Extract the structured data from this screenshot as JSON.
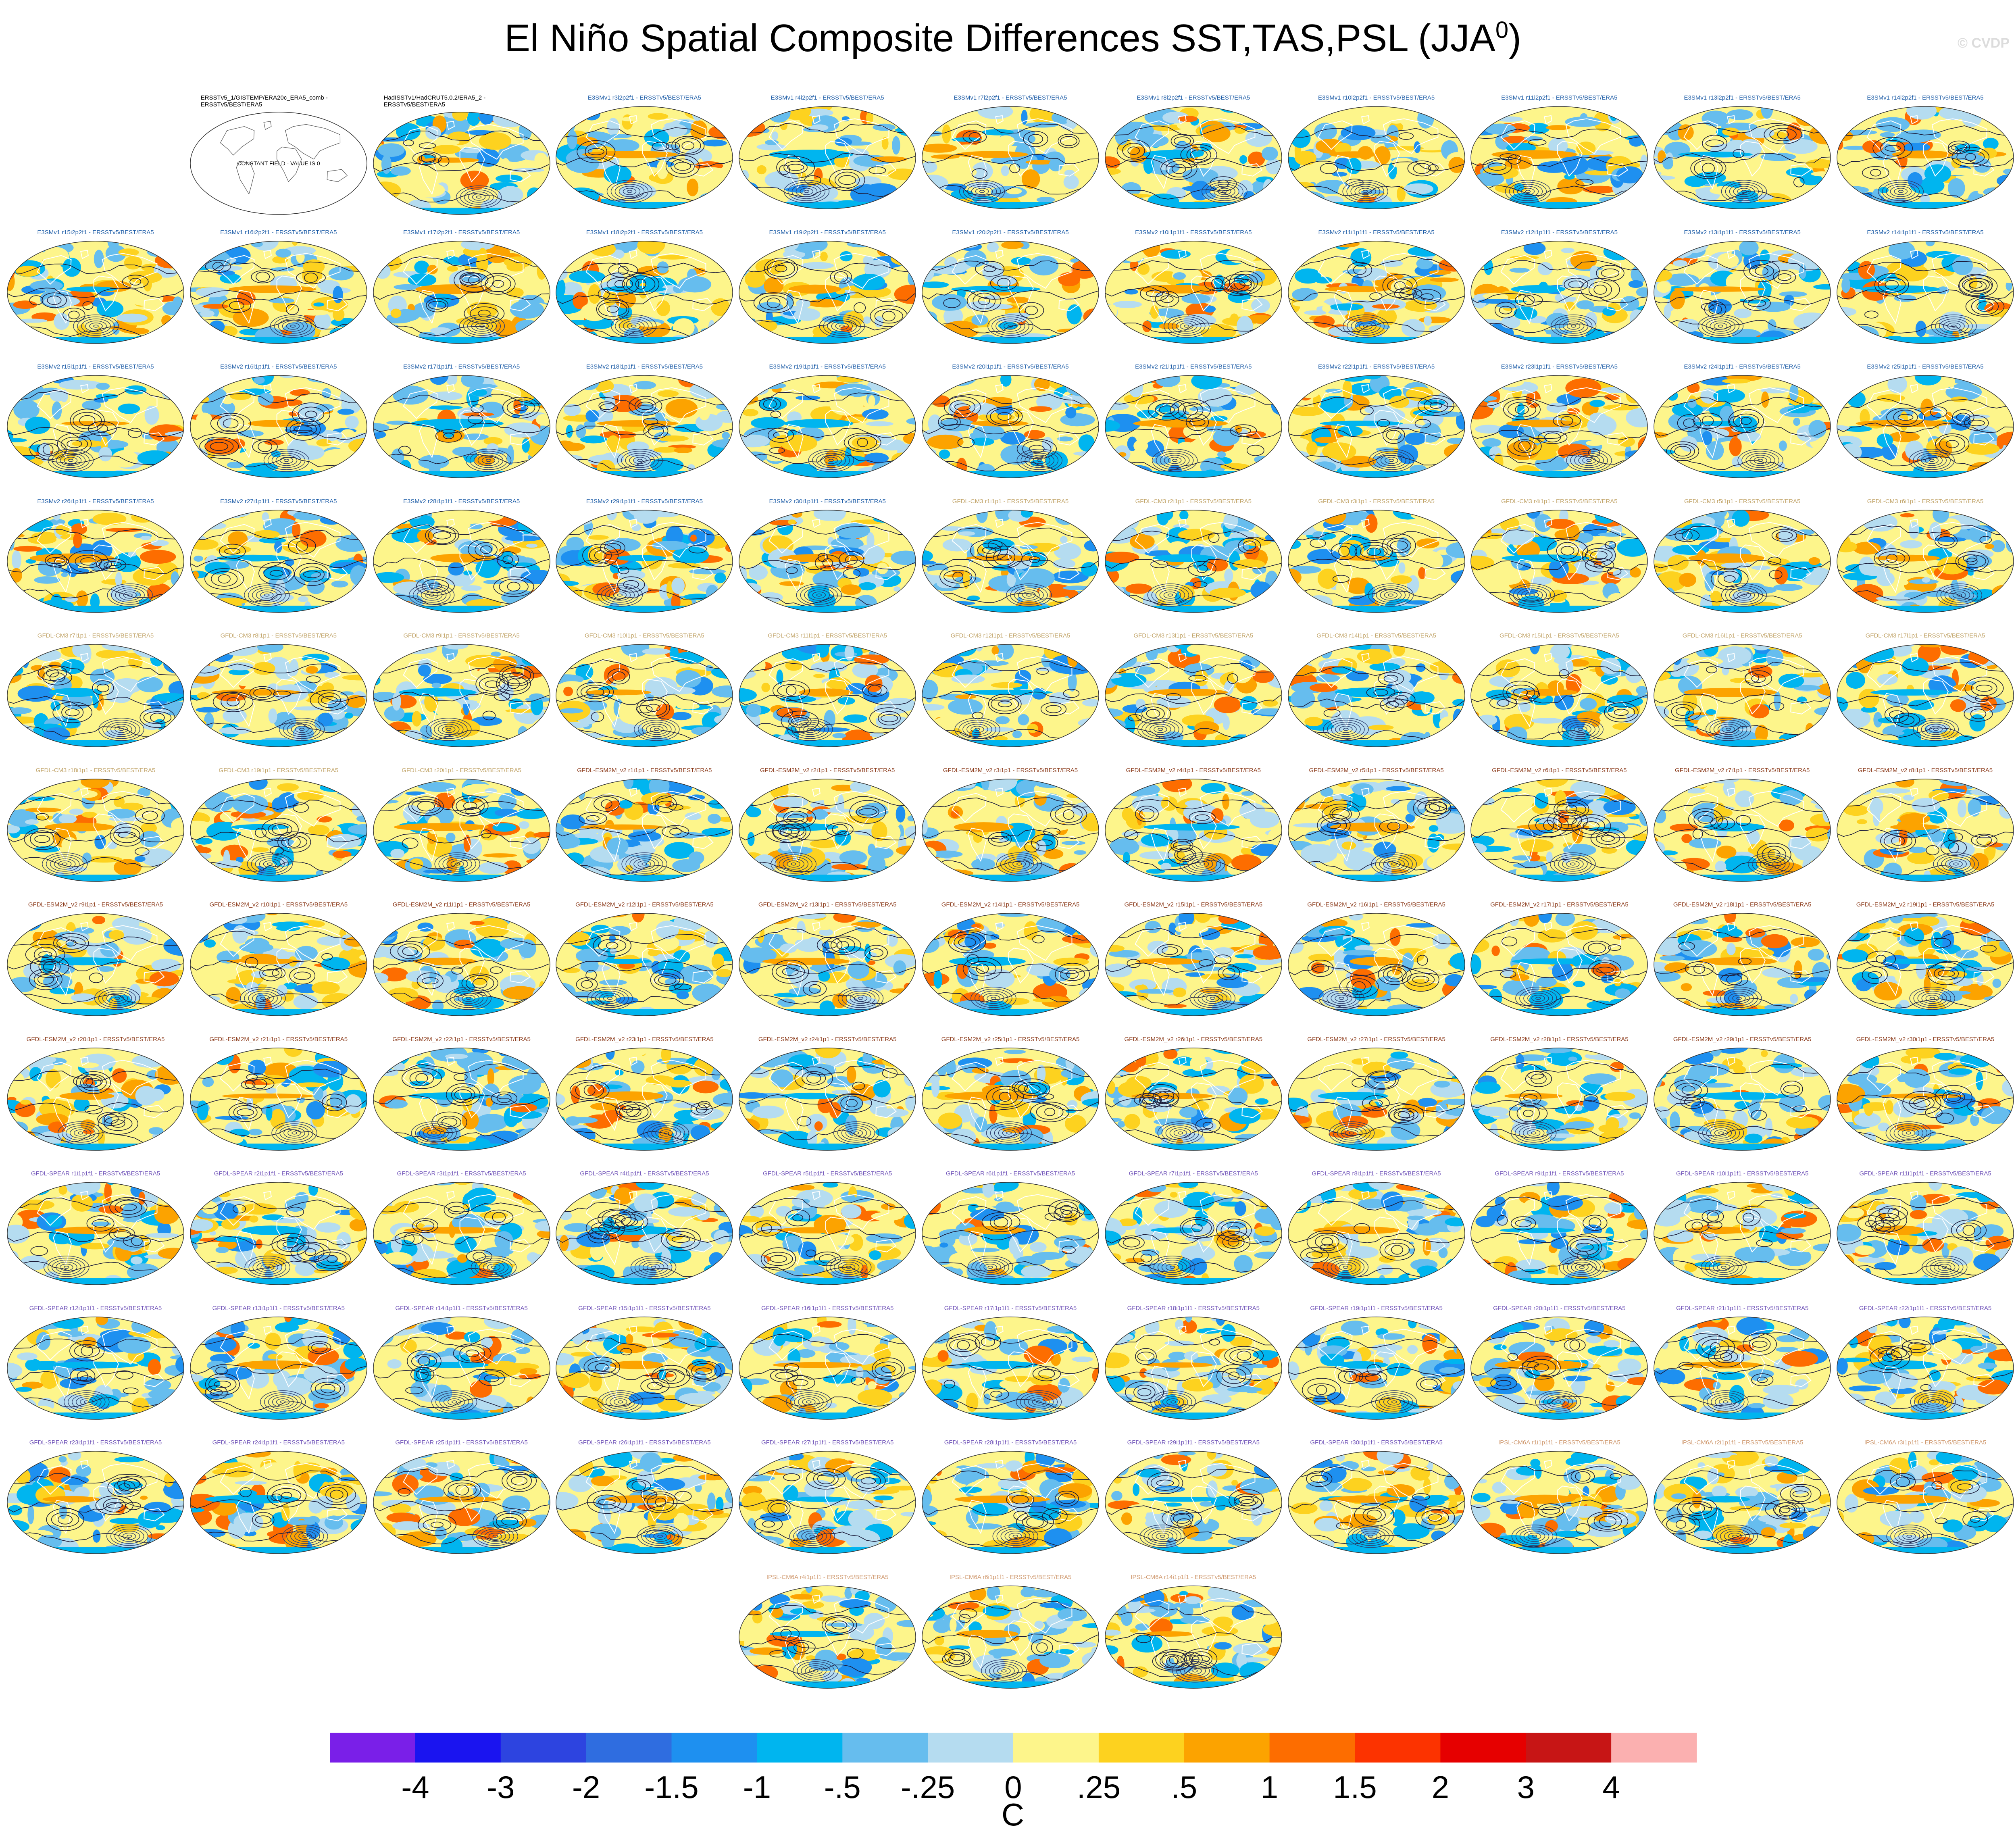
{
  "title": "El Niño Spatial Composite Differences SST,TAS,PSL (JJA",
  "title_superscript": "0",
  "title_suffix": ")",
  "watermark": "© CVDP",
  "colors": {
    "E3SM": "#1f5ea8",
    "GFDL-CM3": "#c2a56a",
    "GFDL-ESM2M": "#8b3a1a",
    "GFDL-SPEAR": "#6f52b8",
    "IPSL-CM6A": "#d09a70",
    "obs": "#000000"
  },
  "panels": [
    {
      "label": "ERSSTv5_1/GISTEMP/ERA20c_ERA5_comb - ERSSTv5/BEST/ERA5",
      "group": "obs",
      "constant": "CONSTANT FIELD - VALUE IS 0"
    },
    {
      "label": "HadISSTv1/HadCRUT5.0.2/ERA5_2 - ERSSTv5/BEST/ERA5",
      "group": "obs"
    },
    {
      "label": "E3SMv1 r3i2p2f1 - ERSSTv5/BEST/ERA5",
      "group": "E3SM"
    },
    {
      "label": "E3SMv1 r4i2p2f1 - ERSSTv5/BEST/ERA5",
      "group": "E3SM"
    },
    {
      "label": "E3SMv1 r7i2p2f1 - ERSSTv5/BEST/ERA5",
      "group": "E3SM"
    },
    {
      "label": "E3SMv1 r8i2p2f1 - ERSSTv5/BEST/ERA5",
      "group": "E3SM"
    },
    {
      "label": "E3SMv1 r10i2p2f1 - ERSSTv5/BEST/ERA5",
      "group": "E3SM"
    },
    {
      "label": "E3SMv1 r11i2p2f1 - ERSSTv5/BEST/ERA5",
      "group": "E3SM"
    },
    {
      "label": "E3SMv1 r13i2p2f1 - ERSSTv5/BEST/ERA5",
      "group": "E3SM"
    },
    {
      "label": "E3SMv1 r14i2p2f1 - ERSSTv5/BEST/ERA5",
      "group": "E3SM"
    },
    {
      "label": "E3SMv1 r15i2p2f1 - ERSSTv5/BEST/ERA5",
      "group": "E3SM"
    },
    {
      "label": "E3SMv1 r16i2p2f1 - ERSSTv5/BEST/ERA5",
      "group": "E3SM"
    },
    {
      "label": "E3SMv1 r17i2p2f1 - ERSSTv5/BEST/ERA5",
      "group": "E3SM"
    },
    {
      "label": "E3SMv1 r18i2p2f1 - ERSSTv5/BEST/ERA5",
      "group": "E3SM"
    },
    {
      "label": "E3SMv1 r19i2p2f1 - ERSSTv5/BEST/ERA5",
      "group": "E3SM"
    },
    {
      "label": "E3SMv1 r20i2p2f1 - ERSSTv5/BEST/ERA5",
      "group": "E3SM"
    },
    {
      "label": "E3SMv2 r10i1p1f1 - ERSSTv5/BEST/ERA5",
      "group": "E3SM"
    },
    {
      "label": "E3SMv2 r11i1p1f1 - ERSSTv5/BEST/ERA5",
      "group": "E3SM"
    },
    {
      "label": "E3SMv2 r12i1p1f1 - ERSSTv5/BEST/ERA5",
      "group": "E3SM"
    },
    {
      "label": "E3SMv2 r13i1p1f1 - ERSSTv5/BEST/ERA5",
      "group": "E3SM"
    },
    {
      "label": "E3SMv2 r14i1p1f1 - ERSSTv5/BEST/ERA5",
      "group": "E3SM"
    },
    {
      "label": "E3SMv2 r15i1p1f1 - ERSSTv5/BEST/ERA5",
      "group": "E3SM"
    },
    {
      "label": "E3SMv2 r16i1p1f1 - ERSSTv5/BEST/ERA5",
      "group": "E3SM"
    },
    {
      "label": "E3SMv2 r17i1p1f1 - ERSSTv5/BEST/ERA5",
      "group": "E3SM"
    },
    {
      "label": "E3SMv2 r18i1p1f1 - ERSSTv5/BEST/ERA5",
      "group": "E3SM"
    },
    {
      "label": "E3SMv2 r19i1p1f1 - ERSSTv5/BEST/ERA5",
      "group": "E3SM"
    },
    {
      "label": "E3SMv2 r20i1p1f1 - ERSSTv5/BEST/ERA5",
      "group": "E3SM"
    },
    {
      "label": "E3SMv2 r21i1p1f1 - ERSSTv5/BEST/ERA5",
      "group": "E3SM"
    },
    {
      "label": "E3SMv2 r22i1p1f1 - ERSSTv5/BEST/ERA5",
      "group": "E3SM"
    },
    {
      "label": "E3SMv2 r23i1p1f1 - ERSSTv5/BEST/ERA5",
      "group": "E3SM"
    },
    {
      "label": "E3SMv2 r24i1p1f1 - ERSSTv5/BEST/ERA5",
      "group": "E3SM"
    },
    {
      "label": "E3SMv2 r25i1p1f1 - ERSSTv5/BEST/ERA5",
      "group": "E3SM"
    },
    {
      "label": "E3SMv2 r26i1p1f1 - ERSSTv5/BEST/ERA5",
      "group": "E3SM"
    },
    {
      "label": "E3SMv2 r27i1p1f1 - ERSSTv5/BEST/ERA5",
      "group": "E3SM"
    },
    {
      "label": "E3SMv2 r28i1p1f1 - ERSSTv5/BEST/ERA5",
      "group": "E3SM"
    },
    {
      "label": "E3SMv2 r29i1p1f1 - ERSSTv5/BEST/ERA5",
      "group": "E3SM"
    },
    {
      "label": "E3SMv2 r30i1p1f1 - ERSSTv5/BEST/ERA5",
      "group": "E3SM"
    },
    {
      "label": "GFDL-CM3 r1i1p1 - ERSSTv5/BEST/ERA5",
      "group": "GFDL-CM3"
    },
    {
      "label": "GFDL-CM3 r2i1p1 - ERSSTv5/BEST/ERA5",
      "group": "GFDL-CM3"
    },
    {
      "label": "GFDL-CM3 r3i1p1 - ERSSTv5/BEST/ERA5",
      "group": "GFDL-CM3"
    },
    {
      "label": "GFDL-CM3 r4i1p1 - ERSSTv5/BEST/ERA5",
      "group": "GFDL-CM3"
    },
    {
      "label": "GFDL-CM3 r5i1p1 - ERSSTv5/BEST/ERA5",
      "group": "GFDL-CM3"
    },
    {
      "label": "GFDL-CM3 r6i1p1 - ERSSTv5/BEST/ERA5",
      "group": "GFDL-CM3"
    },
    {
      "label": "GFDL-CM3 r7i1p1 - ERSSTv5/BEST/ERA5",
      "group": "GFDL-CM3"
    },
    {
      "label": "GFDL-CM3 r8i1p1 - ERSSTv5/BEST/ERA5",
      "group": "GFDL-CM3"
    },
    {
      "label": "GFDL-CM3 r9i1p1 - ERSSTv5/BEST/ERA5",
      "group": "GFDL-CM3"
    },
    {
      "label": "GFDL-CM3 r10i1p1 - ERSSTv5/BEST/ERA5",
      "group": "GFDL-CM3"
    },
    {
      "label": "GFDL-CM3 r11i1p1 - ERSSTv5/BEST/ERA5",
      "group": "GFDL-CM3"
    },
    {
      "label": "GFDL-CM3 r12i1p1 - ERSSTv5/BEST/ERA5",
      "group": "GFDL-CM3"
    },
    {
      "label": "GFDL-CM3 r13i1p1 - ERSSTv5/BEST/ERA5",
      "group": "GFDL-CM3"
    },
    {
      "label": "GFDL-CM3 r14i1p1 - ERSSTv5/BEST/ERA5",
      "group": "GFDL-CM3"
    },
    {
      "label": "GFDL-CM3 r15i1p1 - ERSSTv5/BEST/ERA5",
      "group": "GFDL-CM3"
    },
    {
      "label": "GFDL-CM3 r16i1p1 - ERSSTv5/BEST/ERA5",
      "group": "GFDL-CM3"
    },
    {
      "label": "GFDL-CM3 r17i1p1 - ERSSTv5/BEST/ERA5",
      "group": "GFDL-CM3"
    },
    {
      "label": "GFDL-CM3 r18i1p1 - ERSSTv5/BEST/ERA5",
      "group": "GFDL-CM3"
    },
    {
      "label": "GFDL-CM3 r19i1p1 - ERSSTv5/BEST/ERA5",
      "group": "GFDL-CM3"
    },
    {
      "label": "GFDL-CM3 r20i1p1 - ERSSTv5/BEST/ERA5",
      "group": "GFDL-CM3"
    },
    {
      "label": "GFDL-ESM2M_v2 r1i1p1 - ERSSTv5/BEST/ERA5",
      "group": "GFDL-ESM2M"
    },
    {
      "label": "GFDL-ESM2M_v2 r2i1p1 - ERSSTv5/BEST/ERA5",
      "group": "GFDL-ESM2M"
    },
    {
      "label": "GFDL-ESM2M_v2 r3i1p1 - ERSSTv5/BEST/ERA5",
      "group": "GFDL-ESM2M"
    },
    {
      "label": "GFDL-ESM2M_v2 r4i1p1 - ERSSTv5/BEST/ERA5",
      "group": "GFDL-ESM2M"
    },
    {
      "label": "GFDL-ESM2M_v2 r5i1p1 - ERSSTv5/BEST/ERA5",
      "group": "GFDL-ESM2M"
    },
    {
      "label": "GFDL-ESM2M_v2 r6i1p1 - ERSSTv5/BEST/ERA5",
      "group": "GFDL-ESM2M"
    },
    {
      "label": "GFDL-ESM2M_v2 r7i1p1 - ERSSTv5/BEST/ERA5",
      "group": "GFDL-ESM2M"
    },
    {
      "label": "GFDL-ESM2M_v2 r8i1p1 - ERSSTv5/BEST/ERA5",
      "group": "GFDL-ESM2M"
    },
    {
      "label": "GFDL-ESM2M_v2 r9i1p1 - ERSSTv5/BEST/ERA5",
      "group": "GFDL-ESM2M"
    },
    {
      "label": "GFDL-ESM2M_v2 r10i1p1 - ERSSTv5/BEST/ERA5",
      "group": "GFDL-ESM2M"
    },
    {
      "label": "GFDL-ESM2M_v2 r11i1p1 - ERSSTv5/BEST/ERA5",
      "group": "GFDL-ESM2M"
    },
    {
      "label": "GFDL-ESM2M_v2 r12i1p1 - ERSSTv5/BEST/ERA5",
      "group": "GFDL-ESM2M"
    },
    {
      "label": "GFDL-ESM2M_v2 r13i1p1 - ERSSTv5/BEST/ERA5",
      "group": "GFDL-ESM2M"
    },
    {
      "label": "GFDL-ESM2M_v2 r14i1p1 - ERSSTv5/BEST/ERA5",
      "group": "GFDL-ESM2M"
    },
    {
      "label": "GFDL-ESM2M_v2 r15i1p1 - ERSSTv5/BEST/ERA5",
      "group": "GFDL-ESM2M"
    },
    {
      "label": "GFDL-ESM2M_v2 r16i1p1 - ERSSTv5/BEST/ERA5",
      "group": "GFDL-ESM2M"
    },
    {
      "label": "GFDL-ESM2M_v2 r17i1p1 - ERSSTv5/BEST/ERA5",
      "group": "GFDL-ESM2M"
    },
    {
      "label": "GFDL-ESM2M_v2 r18i1p1 - ERSSTv5/BEST/ERA5",
      "group": "GFDL-ESM2M"
    },
    {
      "label": "GFDL-ESM2M_v2 r19i1p1 - ERSSTv5/BEST/ERA5",
      "group": "GFDL-ESM2M"
    },
    {
      "label": "GFDL-ESM2M_v2 r20i1p1 - ERSSTv5/BEST/ERA5",
      "group": "GFDL-ESM2M"
    },
    {
      "label": "GFDL-ESM2M_v2 r21i1p1 - ERSSTv5/BEST/ERA5",
      "group": "GFDL-ESM2M"
    },
    {
      "label": "GFDL-ESM2M_v2 r22i1p1 - ERSSTv5/BEST/ERA5",
      "group": "GFDL-ESM2M"
    },
    {
      "label": "GFDL-ESM2M_v2 r23i1p1 - ERSSTv5/BEST/ERA5",
      "group": "GFDL-ESM2M"
    },
    {
      "label": "GFDL-ESM2M_v2 r24i1p1 - ERSSTv5/BEST/ERA5",
      "group": "GFDL-ESM2M"
    },
    {
      "label": "GFDL-ESM2M_v2 r25i1p1 - ERSSTv5/BEST/ERA5",
      "group": "GFDL-ESM2M"
    },
    {
      "label": "GFDL-ESM2M_v2 r26i1p1 - ERSSTv5/BEST/ERA5",
      "group": "GFDL-ESM2M"
    },
    {
      "label": "GFDL-ESM2M_v2 r27i1p1 - ERSSTv5/BEST/ERA5",
      "group": "GFDL-ESM2M"
    },
    {
      "label": "GFDL-ESM2M_v2 r28i1p1 - ERSSTv5/BEST/ERA5",
      "group": "GFDL-ESM2M"
    },
    {
      "label": "GFDL-ESM2M_v2 r29i1p1 - ERSSTv5/BEST/ERA5",
      "group": "GFDL-ESM2M"
    },
    {
      "label": "GFDL-ESM2M_v2 r30i1p1 - ERSSTv5/BEST/ERA5",
      "group": "GFDL-ESM2M"
    },
    {
      "label": "GFDL-SPEAR r1i1p1f1 - ERSSTv5/BEST/ERA5",
      "group": "GFDL-SPEAR"
    },
    {
      "label": "GFDL-SPEAR r2i1p1f1 - ERSSTv5/BEST/ERA5",
      "group": "GFDL-SPEAR"
    },
    {
      "label": "GFDL-SPEAR r3i1p1f1 - ERSSTv5/BEST/ERA5",
      "group": "GFDL-SPEAR"
    },
    {
      "label": "GFDL-SPEAR r4i1p1f1 - ERSSTv5/BEST/ERA5",
      "group": "GFDL-SPEAR"
    },
    {
      "label": "GFDL-SPEAR r5i1p1f1 - ERSSTv5/BEST/ERA5",
      "group": "GFDL-SPEAR"
    },
    {
      "label": "GFDL-SPEAR r6i1p1f1 - ERSSTv5/BEST/ERA5",
      "group": "GFDL-SPEAR"
    },
    {
      "label": "GFDL-SPEAR r7i1p1f1 - ERSSTv5/BEST/ERA5",
      "group": "GFDL-SPEAR"
    },
    {
      "label": "GFDL-SPEAR r8i1p1f1 - ERSSTv5/BEST/ERA5",
      "group": "GFDL-SPEAR"
    },
    {
      "label": "GFDL-SPEAR r9i1p1f1 - ERSSTv5/BEST/ERA5",
      "group": "GFDL-SPEAR"
    },
    {
      "label": "GFDL-SPEAR r10i1p1f1 - ERSSTv5/BEST/ERA5",
      "group": "GFDL-SPEAR"
    },
    {
      "label": "GFDL-SPEAR r11i1p1f1 - ERSSTv5/BEST/ERA5",
      "group": "GFDL-SPEAR"
    },
    {
      "label": "GFDL-SPEAR r12i1p1f1 - ERSSTv5/BEST/ERA5",
      "group": "GFDL-SPEAR"
    },
    {
      "label": "GFDL-SPEAR r13i1p1f1 - ERSSTv5/BEST/ERA5",
      "group": "GFDL-SPEAR"
    },
    {
      "label": "GFDL-SPEAR r14i1p1f1 - ERSSTv5/BEST/ERA5",
      "group": "GFDL-SPEAR"
    },
    {
      "label": "GFDL-SPEAR r15i1p1f1 - ERSSTv5/BEST/ERA5",
      "group": "GFDL-SPEAR"
    },
    {
      "label": "GFDL-SPEAR r16i1p1f1 - ERSSTv5/BEST/ERA5",
      "group": "GFDL-SPEAR"
    },
    {
      "label": "GFDL-SPEAR r17i1p1f1 - ERSSTv5/BEST/ERA5",
      "group": "GFDL-SPEAR"
    },
    {
      "label": "GFDL-SPEAR r18i1p1f1 - ERSSTv5/BEST/ERA5",
      "group": "GFDL-SPEAR"
    },
    {
      "label": "GFDL-SPEAR r19i1p1f1 - ERSSTv5/BEST/ERA5",
      "group": "GFDL-SPEAR"
    },
    {
      "label": "GFDL-SPEAR r20i1p1f1 - ERSSTv5/BEST/ERA5",
      "group": "GFDL-SPEAR"
    },
    {
      "label": "GFDL-SPEAR r21i1p1f1 - ERSSTv5/BEST/ERA5",
      "group": "GFDL-SPEAR"
    },
    {
      "label": "GFDL-SPEAR r22i1p1f1 - ERSSTv5/BEST/ERA5",
      "group": "GFDL-SPEAR"
    },
    {
      "label": "GFDL-SPEAR r23i1p1f1 - ERSSTv5/BEST/ERA5",
      "group": "GFDL-SPEAR"
    },
    {
      "label": "GFDL-SPEAR r24i1p1f1 - ERSSTv5/BEST/ERA5",
      "group": "GFDL-SPEAR"
    },
    {
      "label": "GFDL-SPEAR r25i1p1f1 - ERSSTv5/BEST/ERA5",
      "group": "GFDL-SPEAR"
    },
    {
      "label": "GFDL-SPEAR r26i1p1f1 - ERSSTv5/BEST/ERA5",
      "group": "GFDL-SPEAR"
    },
    {
      "label": "GFDL-SPEAR r27i1p1f1 - ERSSTv5/BEST/ERA5",
      "group": "GFDL-SPEAR"
    },
    {
      "label": "GFDL-SPEAR r28i1p1f1 - ERSSTv5/BEST/ERA5",
      "group": "GFDL-SPEAR"
    },
    {
      "label": "GFDL-SPEAR r29i1p1f1 - ERSSTv5/BEST/ERA5",
      "group": "GFDL-SPEAR"
    },
    {
      "label": "GFDL-SPEAR r30i1p1f1 - ERSSTv5/BEST/ERA5",
      "group": "GFDL-SPEAR"
    },
    {
      "label": "IPSL-CM6A r1i1p1f1 - ERSSTv5/BEST/ERA5",
      "group": "IPSL-CM6A"
    },
    {
      "label": "IPSL-CM6A r2i1p1f1 - ERSSTv5/BEST/ERA5",
      "group": "IPSL-CM6A"
    },
    {
      "label": "IPSL-CM6A r3i1p1f1 - ERSSTv5/BEST/ERA5",
      "group": "IPSL-CM6A"
    },
    {
      "label": "IPSL-CM6A r4i1p1f1 - ERSSTv5/BEST/ERA5",
      "group": "IPSL-CM6A"
    },
    {
      "label": "IPSL-CM6A r6i1p1f1 - ERSSTv5/BEST/ERA5",
      "group": "IPSL-CM6A"
    },
    {
      "label": "IPSL-CM6A r14i1p1f1 - ERSSTv5/BEST/ERA5",
      "group": "IPSL-CM6A"
    }
  ],
  "chart_data": {
    "type": "heatmap",
    "title": "El Niño Spatial Composite Differences SST,TAS,PSL (JJA0)",
    "colorbar": {
      "levels": [
        "-4",
        "-3",
        "-2",
        "-1.5",
        "-1",
        "-.5",
        "-.25",
        "0",
        ".25",
        ".5",
        "1",
        "1.5",
        "2",
        "3",
        "4"
      ],
      "level_values": [
        -4,
        -3,
        -2,
        -1.5,
        -1,
        -0.5,
        -0.25,
        0,
        0.25,
        0.5,
        1,
        1.5,
        2,
        3,
        4
      ],
      "colors": [
        "#7a1fe8",
        "#1a14f0",
        "#2d44e0",
        "#2f6de0",
        "#1e90f0",
        "#00b5ef",
        "#66bdee",
        "#b5dcf0",
        "#fdf58b",
        "#fdd21f",
        "#fca300",
        "#fd6d00",
        "#fc3300",
        "#e60000",
        "#c71515",
        "#fbb0b0"
      ],
      "units": "C"
    }
  }
}
